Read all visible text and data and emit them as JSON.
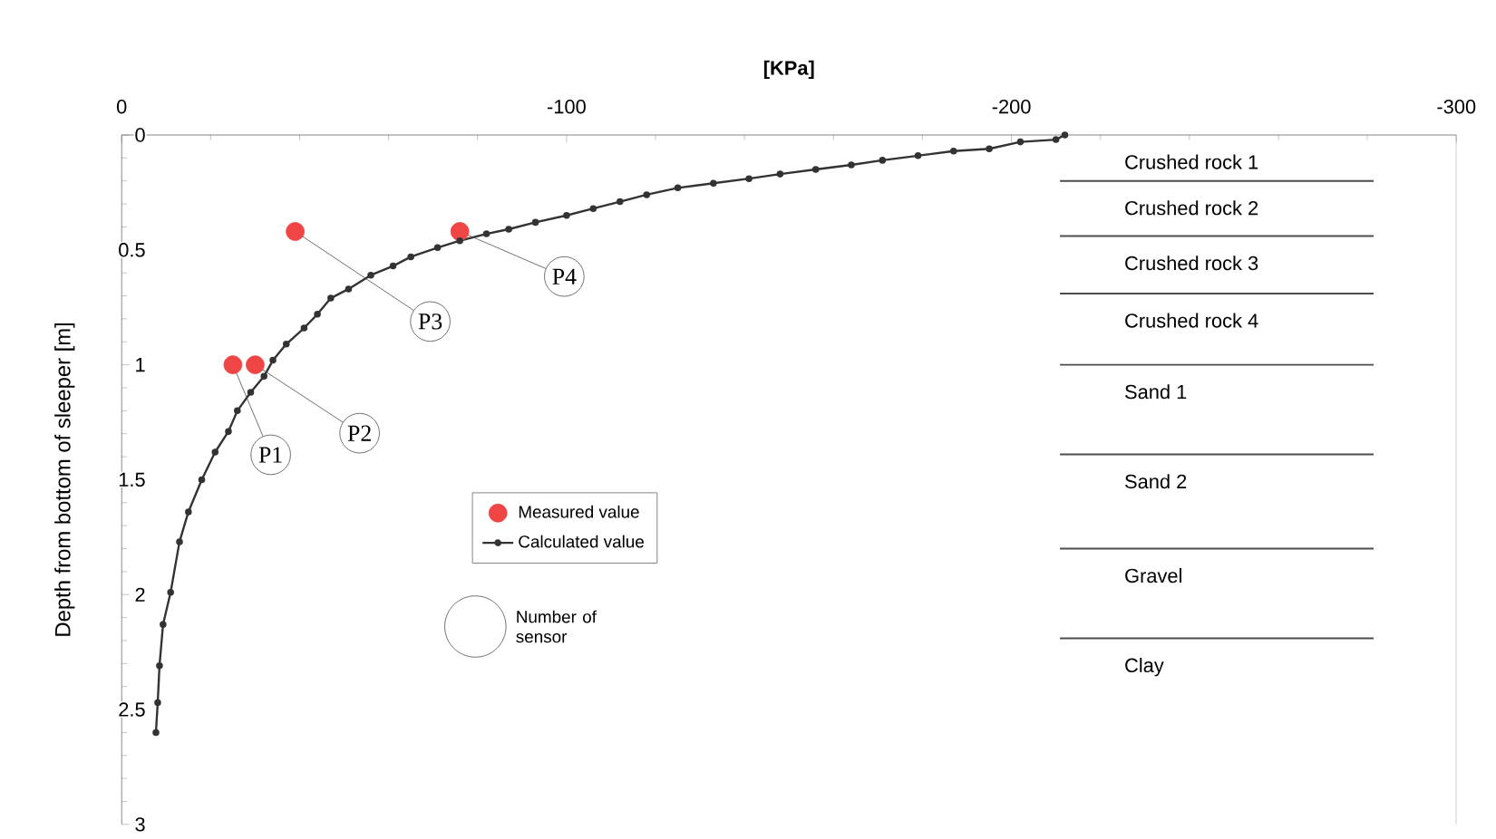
{
  "chart_data": {
    "type": "line",
    "xlabel": "[KPa]",
    "ylabel": "Depth from bottom of sleeper [m]",
    "xlim": [
      0,
      -300
    ],
    "ylim": [
      3,
      0
    ],
    "xticks": [
      0,
      -100,
      -200,
      -300
    ],
    "yticks": [
      0,
      0.5,
      1,
      1.5,
      2,
      2.5,
      3
    ],
    "grid": false,
    "legend": "center",
    "marker": "circle",
    "series": [
      {
        "name": "Measured value",
        "type": "scatter",
        "color": "#f04545",
        "x": [
          -25,
          -30,
          -39,
          -76
        ],
        "values": [
          1.0,
          1.0,
          0.42,
          0.42
        ]
      },
      {
        "name": "Calculated value",
        "color": "#333333",
        "x": [
          -212,
          -210,
          -202,
          -195,
          -187,
          -179,
          -171,
          -164,
          -156,
          -148,
          -141,
          -133,
          -125,
          -118,
          -112,
          -106,
          -100,
          -93,
          -87,
          -82,
          -76,
          -71,
          -65,
          -61,
          -56,
          -51,
          -47,
          -44,
          -41,
          -37,
          -34,
          -32,
          -29,
          -26,
          -24,
          -21,
          -18,
          -15,
          -13,
          -11,
          -9.3,
          -8.5,
          -8.1,
          -7.7
        ],
        "values": [
          0,
          0.02,
          0.03,
          0.06,
          0.07,
          0.09,
          0.11,
          0.13,
          0.15,
          0.17,
          0.19,
          0.21,
          0.23,
          0.26,
          0.29,
          0.32,
          0.35,
          0.38,
          0.41,
          0.43,
          0.46,
          0.49,
          0.53,
          0.57,
          0.61,
          0.67,
          0.71,
          0.78,
          0.84,
          0.91,
          0.98,
          1.05,
          1.12,
          1.2,
          1.29,
          1.38,
          1.5,
          1.64,
          1.77,
          1.99,
          2.13,
          2.31,
          2.47,
          2.6
        ]
      }
    ],
    "ref_lines": [
      {
        "axis": "y",
        "value": 0.2
      },
      {
        "axis": "y",
        "value": 0.44
      },
      {
        "axis": "y",
        "value": 0.69
      },
      {
        "axis": "y",
        "value": 1.0
      },
      {
        "axis": "y",
        "value": 1.39
      },
      {
        "axis": "y",
        "value": 1.8
      },
      {
        "axis": "y",
        "value": 2.19
      }
    ],
    "annotations": [
      {
        "text": "P1",
        "x": -25,
        "y": 1.0
      },
      {
        "text": "P2",
        "x": -30,
        "y": 1.0
      },
      {
        "text": "P3",
        "x": -39,
        "y": 0.42
      },
      {
        "text": "P4",
        "x": -76,
        "y": 0.42
      },
      "Number of sensor",
      "Crushed rock 1",
      "Crushed rock 2",
      "Crushed rock 3",
      "Crushed rock 4",
      "Sand 1",
      "Sand 2",
      "Gravel",
      "Clay"
    ]
  }
}
